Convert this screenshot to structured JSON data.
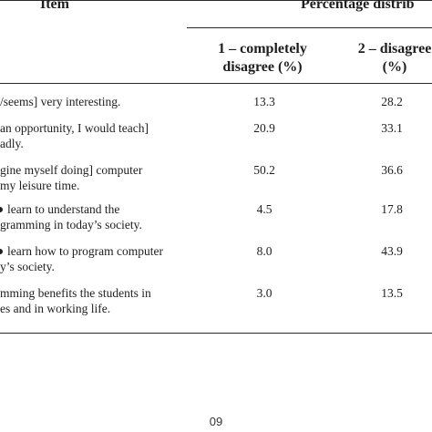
{
  "header": {
    "item": "Item",
    "percentage": "Percentage distrib"
  },
  "subheaders": [
    {
      "line1": "1 – completely",
      "line2": "disagree (%)"
    },
    {
      "line1": "2 – disagree",
      "line2": "(%)"
    }
  ],
  "rows": [
    {
      "text1": "/seems] very interesting.",
      "text2": "",
      "v1": "13.3",
      "v2": "28.2"
    },
    {
      "text1": "an opportunity, I would teach]",
      "text2": "adly.",
      "v1": "20.9",
      "v2": "33.1"
    },
    {
      "text1": "gine myself doing] computer",
      "text2": "my leisure time.",
      "v1": "50.2",
      "v2": "36.6"
    },
    {
      "text1": "learn to understand the",
      "text2": "gramming in today’s society.",
      "v1": "4.5",
      "v2": "17.8"
    },
    {
      "text1": "learn how to program computer",
      "text2": "y’s society.",
      "v1": "8.0",
      "v2": "43.9"
    },
    {
      "text1": "mming benefits the students in",
      "text2": "es and in working life.",
      "v1": "3.0",
      "v2": "13.5"
    }
  ],
  "footer": {
    "page_number": "09"
  }
}
